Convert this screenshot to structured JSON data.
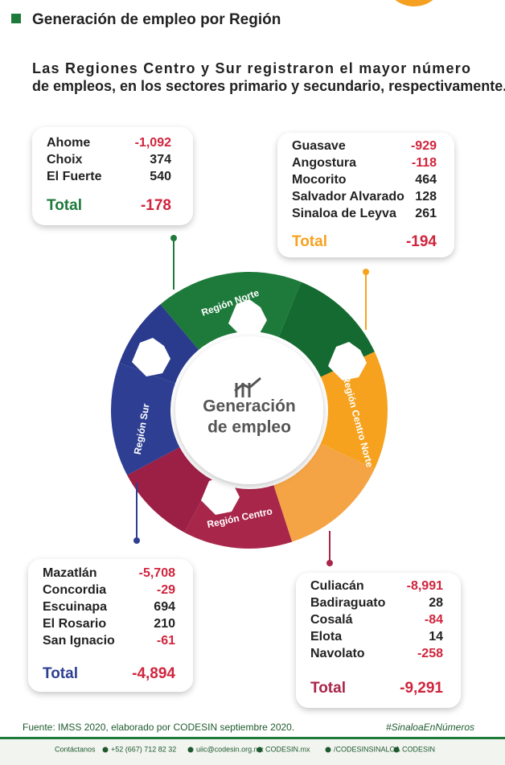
{
  "header": {
    "title": "Generación de empleo por Región",
    "subtitle": "Las Regiones Centro y Sur registraron el mayor número de empleos, en los sectores primario y secundario, respectivamente."
  },
  "center": {
    "line1": "Generación",
    "line2": "de empleo"
  },
  "regions": [
    {
      "name": "Región Norte",
      "total_label": "Total",
      "total": "-178",
      "municipalities": [
        {
          "name": "Ahome",
          "value": "-1,092"
        },
        {
          "name": "Choix",
          "value": "374"
        },
        {
          "name": "El Fuerte",
          "value": "540"
        }
      ]
    },
    {
      "name": "Región Centro Norte",
      "total_label": "Total",
      "total": "-194",
      "municipalities": [
        {
          "name": "Guasave",
          "value": "-929"
        },
        {
          "name": "Angostura",
          "value": "-118"
        },
        {
          "name": "Mocorito",
          "value": "464"
        },
        {
          "name": "Salvador Alvarado",
          "value": "128"
        },
        {
          "name": "Sinaloa de Leyva",
          "value": "261"
        }
      ]
    },
    {
      "name": "Región Sur",
      "total_label": "Total",
      "total": "-4,894",
      "municipalities": [
        {
          "name": "Mazatlán",
          "value": "-5,708"
        },
        {
          "name": "Concordia",
          "value": "-29"
        },
        {
          "name": "Escuinapa",
          "value": "694"
        },
        {
          "name": "El Rosario",
          "value": "210"
        },
        {
          "name": "San Ignacio",
          "value": "-61"
        }
      ]
    },
    {
      "name": "Región Centro",
      "total_label": "Total",
      "total": "-9,291",
      "municipalities": [
        {
          "name": "Culiacán",
          "value": "-8,991"
        },
        {
          "name": "Badiraguato",
          "value": "28"
        },
        {
          "name": "Cosalá",
          "value": "-84"
        },
        {
          "name": "Elota",
          "value": "14"
        },
        {
          "name": "Navolato",
          "value": "-258"
        }
      ]
    }
  ],
  "footer": {
    "source": "Fuente: IMSS 2020, elaborado por  CODESIN septiembre 2020.",
    "hashtag": "#SinaloaEnNúmeros",
    "contact": [
      "Contáctanos",
      "+52 (667) 712 82 32",
      "uiic@codesin.org.mx",
      "CODESIN.mx",
      "/CODESINSINALOA",
      "CODESIN"
    ]
  }
}
